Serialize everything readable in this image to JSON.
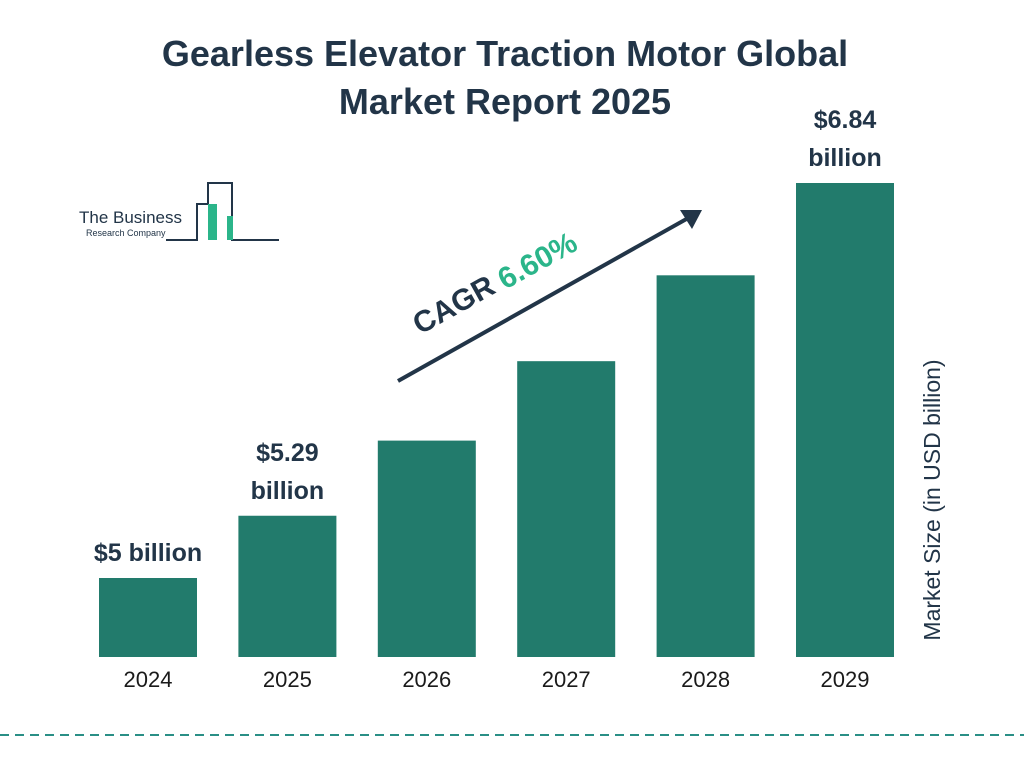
{
  "chart_data": {
    "type": "bar",
    "title": "Gearless Elevator Traction Motor Global Market Report 2025",
    "categories": [
      "2024",
      "2025",
      "2026",
      "2027",
      "2028",
      "2029"
    ],
    "values": [
      5,
      5.29,
      5.64,
      6.01,
      6.41,
      6.84
    ],
    "value_labels": [
      "$5 billion",
      "$5.29 billion",
      null,
      null,
      null,
      "$6.84 billion"
    ],
    "color": "#227b6c",
    "y_axis_label": "Market Size (in USD billion)",
    "annotation": {
      "label": "CAGR",
      "value": "6.60%"
    },
    "logo": {
      "line1": "The Business",
      "line2": "Research Company"
    }
  }
}
